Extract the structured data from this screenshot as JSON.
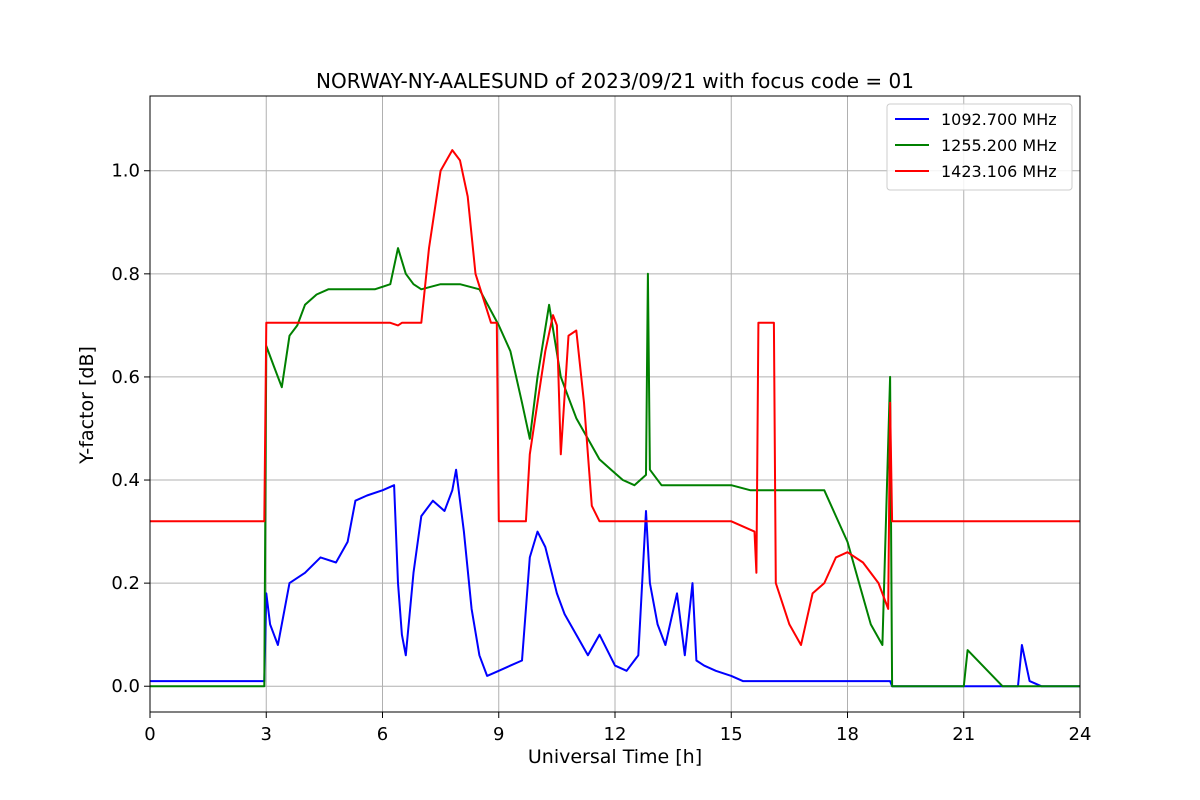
{
  "chart_data": {
    "type": "line",
    "title": "NORWAY-NY-AALESUND of 2023/09/21 with focus code = 01",
    "xlabel": "Universal Time [h]",
    "ylabel": "Y-factor [dB]",
    "xlim": [
      0,
      24
    ],
    "ylim": [
      -0.05,
      1.145
    ],
    "xticks": [
      0,
      3,
      6,
      9,
      12,
      15,
      18,
      21,
      24
    ],
    "xtick_labels": [
      "0",
      "3",
      "6",
      "9",
      "12",
      "15",
      "18",
      "21",
      "24"
    ],
    "yticks": [
      0.0,
      0.2,
      0.4,
      0.6,
      0.8,
      1.0
    ],
    "ytick_labels": [
      "0.0",
      "0.2",
      "0.4",
      "0.6",
      "0.8",
      "1.0"
    ],
    "grid": true,
    "legend_position": "top-right",
    "series": [
      {
        "name": "1092.700 MHz",
        "color": "#0000ff",
        "x": [
          0,
          2.95,
          3.0,
          3.1,
          3.3,
          3.6,
          4.0,
          4.4,
          4.8,
          5.1,
          5.3,
          5.6,
          6.0,
          6.3,
          6.4,
          6.5,
          6.6,
          6.8,
          7.0,
          7.3,
          7.6,
          7.8,
          7.9,
          8.1,
          8.3,
          8.5,
          8.7,
          9.0,
          9.3,
          9.6,
          9.8,
          10.0,
          10.2,
          10.5,
          10.7,
          11.0,
          11.3,
          11.6,
          12.0,
          12.3,
          12.6,
          12.8,
          12.9,
          13.1,
          13.3,
          13.6,
          13.8,
          14.0,
          14.1,
          14.3,
          14.6,
          15.0,
          15.3,
          15.5,
          18.0,
          19.1,
          19.15,
          20.0,
          21.0,
          22.0,
          22.4,
          22.5,
          22.7,
          23.0,
          24.0
        ],
        "y": [
          0.01,
          0.01,
          0.18,
          0.12,
          0.08,
          0.2,
          0.22,
          0.25,
          0.24,
          0.28,
          0.36,
          0.37,
          0.38,
          0.39,
          0.2,
          0.1,
          0.06,
          0.22,
          0.33,
          0.36,
          0.34,
          0.38,
          0.42,
          0.3,
          0.15,
          0.06,
          0.02,
          0.03,
          0.04,
          0.05,
          0.25,
          0.3,
          0.27,
          0.18,
          0.14,
          0.1,
          0.06,
          0.1,
          0.04,
          0.03,
          0.06,
          0.34,
          0.2,
          0.12,
          0.08,
          0.18,
          0.06,
          0.2,
          0.05,
          0.04,
          0.03,
          0.02,
          0.01,
          0.01,
          0.01,
          0.01,
          0.0,
          0.0,
          0.0,
          0.0,
          0.0,
          0.08,
          0.01,
          0.0,
          0.0
        ]
      },
      {
        "name": "1255.200 MHz",
        "color": "#008000",
        "x": [
          0,
          2.95,
          3.0,
          3.2,
          3.4,
          3.6,
          3.8,
          4.0,
          4.3,
          4.6,
          5.0,
          5.3,
          5.8,
          6.2,
          6.4,
          6.6,
          6.8,
          7.0,
          7.5,
          8.0,
          8.5,
          9.0,
          9.3,
          9.6,
          9.8,
          10.0,
          10.3,
          10.6,
          10.8,
          11.0,
          11.3,
          11.6,
          11.9,
          12.2,
          12.5,
          12.8,
          12.85,
          12.9,
          13.2,
          13.5,
          14.0,
          14.5,
          15.0,
          15.5,
          16.0,
          16.5,
          17.0,
          17.4,
          17.7,
          18.0,
          18.3,
          18.6,
          18.9,
          19.1,
          19.15,
          20.0,
          21.0,
          21.1,
          22.0,
          23.0,
          24.0
        ],
        "y": [
          0.0,
          0.0,
          0.66,
          0.62,
          0.58,
          0.68,
          0.7,
          0.74,
          0.76,
          0.77,
          0.77,
          0.77,
          0.77,
          0.78,
          0.85,
          0.8,
          0.78,
          0.77,
          0.78,
          0.78,
          0.77,
          0.7,
          0.65,
          0.55,
          0.48,
          0.6,
          0.74,
          0.6,
          0.56,
          0.52,
          0.48,
          0.44,
          0.42,
          0.4,
          0.39,
          0.41,
          0.8,
          0.42,
          0.39,
          0.39,
          0.39,
          0.39,
          0.39,
          0.38,
          0.38,
          0.38,
          0.38,
          0.38,
          0.33,
          0.28,
          0.2,
          0.12,
          0.08,
          0.6,
          0.0,
          0.0,
          0.0,
          0.07,
          0.0,
          0.0,
          0.0
        ]
      },
      {
        "name": "1423.106 MHz",
        "color": "#ff0000",
        "x": [
          0,
          2.95,
          3.0,
          6.2,
          6.4,
          6.5,
          7.0,
          7.2,
          7.5,
          7.8,
          8.0,
          8.2,
          8.4,
          8.8,
          8.95,
          9.0,
          9.7,
          9.8,
          10.0,
          10.2,
          10.4,
          10.5,
          10.6,
          10.8,
          11.0,
          11.2,
          11.4,
          11.6,
          12.0,
          13.0,
          14.0,
          15.0,
          15.6,
          15.65,
          15.7,
          16.1,
          16.15,
          16.5,
          16.8,
          17.1,
          17.4,
          17.7,
          18.0,
          18.4,
          18.8,
          19.05,
          19.1,
          19.15,
          20.0,
          21.0,
          22.0,
          23.0,
          24.0
        ],
        "y": [
          0.32,
          0.32,
          0.705,
          0.705,
          0.7,
          0.705,
          0.705,
          0.85,
          1.0,
          1.04,
          1.02,
          0.95,
          0.8,
          0.705,
          0.705,
          0.32,
          0.32,
          0.45,
          0.55,
          0.65,
          0.72,
          0.7,
          0.45,
          0.68,
          0.69,
          0.55,
          0.35,
          0.32,
          0.32,
          0.32,
          0.32,
          0.32,
          0.3,
          0.22,
          0.705,
          0.705,
          0.2,
          0.12,
          0.08,
          0.18,
          0.2,
          0.25,
          0.26,
          0.24,
          0.2,
          0.15,
          0.55,
          0.32,
          0.32,
          0.32,
          0.32,
          0.32,
          0.32
        ]
      }
    ]
  }
}
